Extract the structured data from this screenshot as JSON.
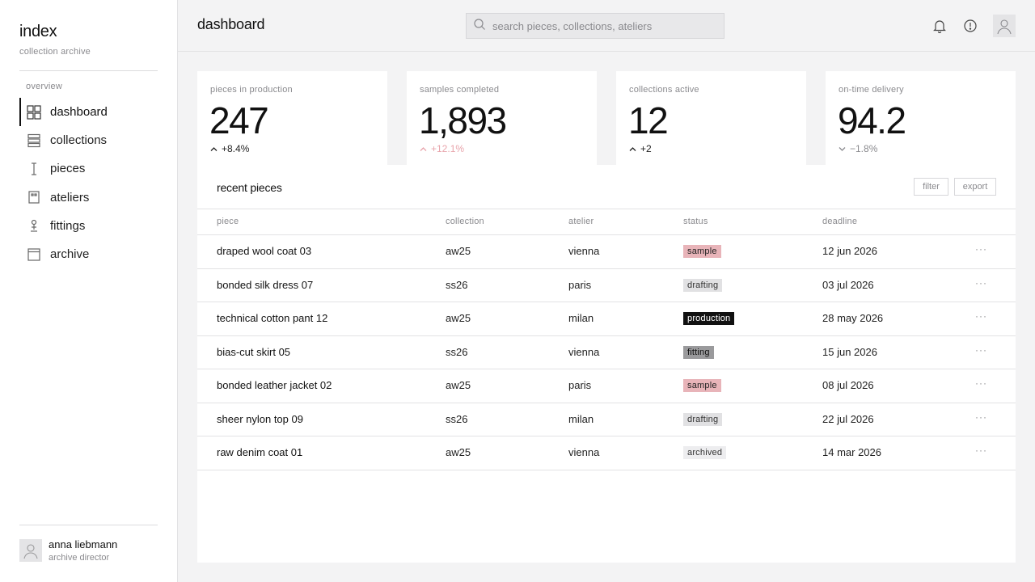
{
  "brand": {
    "title": "index",
    "subtitle": "collection archive"
  },
  "sidebar": {
    "section_label": "overview",
    "items": [
      {
        "label": "dashboard",
        "icon": "grid-icon",
        "active": true
      },
      {
        "label": "collections",
        "icon": "stack-icon"
      },
      {
        "label": "pieces",
        "icon": "needle-icon"
      },
      {
        "label": "ateliers",
        "icon": "building-icon"
      },
      {
        "label": "fittings",
        "icon": "dress-form-icon"
      },
      {
        "label": "archive",
        "icon": "archive-box-icon"
      }
    ]
  },
  "user": {
    "name": "anna liebmann",
    "role": "archive director"
  },
  "header": {
    "title": "dashboard",
    "search_placeholder": "search pieces, collections, ateliers"
  },
  "kpis": [
    {
      "label": "pieces in production",
      "value": "247",
      "delta": "+8.4%",
      "direction": "up",
      "delta_color": "#222222"
    },
    {
      "label": "samples completed",
      "value": "1,893",
      "delta": "+12.1%",
      "direction": "up",
      "delta_color": "#e8a4ab"
    },
    {
      "label": "collections active",
      "value": "12",
      "delta": "+2",
      "direction": "up",
      "delta_color": "#222222"
    },
    {
      "label": "on-time delivery",
      "value": "94.2",
      "delta": "−1.8%",
      "direction": "down",
      "delta_color": "#8a8a8e"
    }
  ],
  "table": {
    "title": "recent pieces",
    "filter_label": "filter",
    "export_label": "export",
    "columns": [
      "piece",
      "collection",
      "atelier",
      "status",
      "deadline"
    ],
    "rows": [
      {
        "piece": "draped wool coat 03",
        "collection": "aw25",
        "atelier": "vienna",
        "status": "sample",
        "deadline": "12 jun 2026"
      },
      {
        "piece": "bonded silk dress 07",
        "collection": "ss26",
        "atelier": "paris",
        "status": "drafting",
        "deadline": "03 jul 2026"
      },
      {
        "piece": "technical cotton pant 12",
        "collection": "aw25",
        "atelier": "milan",
        "status": "production",
        "deadline": "28 may 2026"
      },
      {
        "piece": "bias-cut skirt 05",
        "collection": "ss26",
        "atelier": "vienna",
        "status": "fitting",
        "deadline": "15 jun 2026"
      },
      {
        "piece": "bonded leather jacket 02",
        "collection": "aw25",
        "atelier": "paris",
        "status": "sample",
        "deadline": "08 jul 2026"
      },
      {
        "piece": "sheer nylon top 09",
        "collection": "ss26",
        "atelier": "milan",
        "status": "drafting",
        "deadline": "22 jul 2026"
      },
      {
        "piece": "raw denim coat 01",
        "collection": "aw25",
        "atelier": "vienna",
        "status": "archived",
        "deadline": "14 mar 2026"
      }
    ],
    "row_menu_label": "···"
  },
  "colors": {
    "sample": "#e8b4b9",
    "drafting": "#e1e1e3",
    "production": "#111111",
    "fitting": "#9a9a9c",
    "archived": "#ededef"
  }
}
